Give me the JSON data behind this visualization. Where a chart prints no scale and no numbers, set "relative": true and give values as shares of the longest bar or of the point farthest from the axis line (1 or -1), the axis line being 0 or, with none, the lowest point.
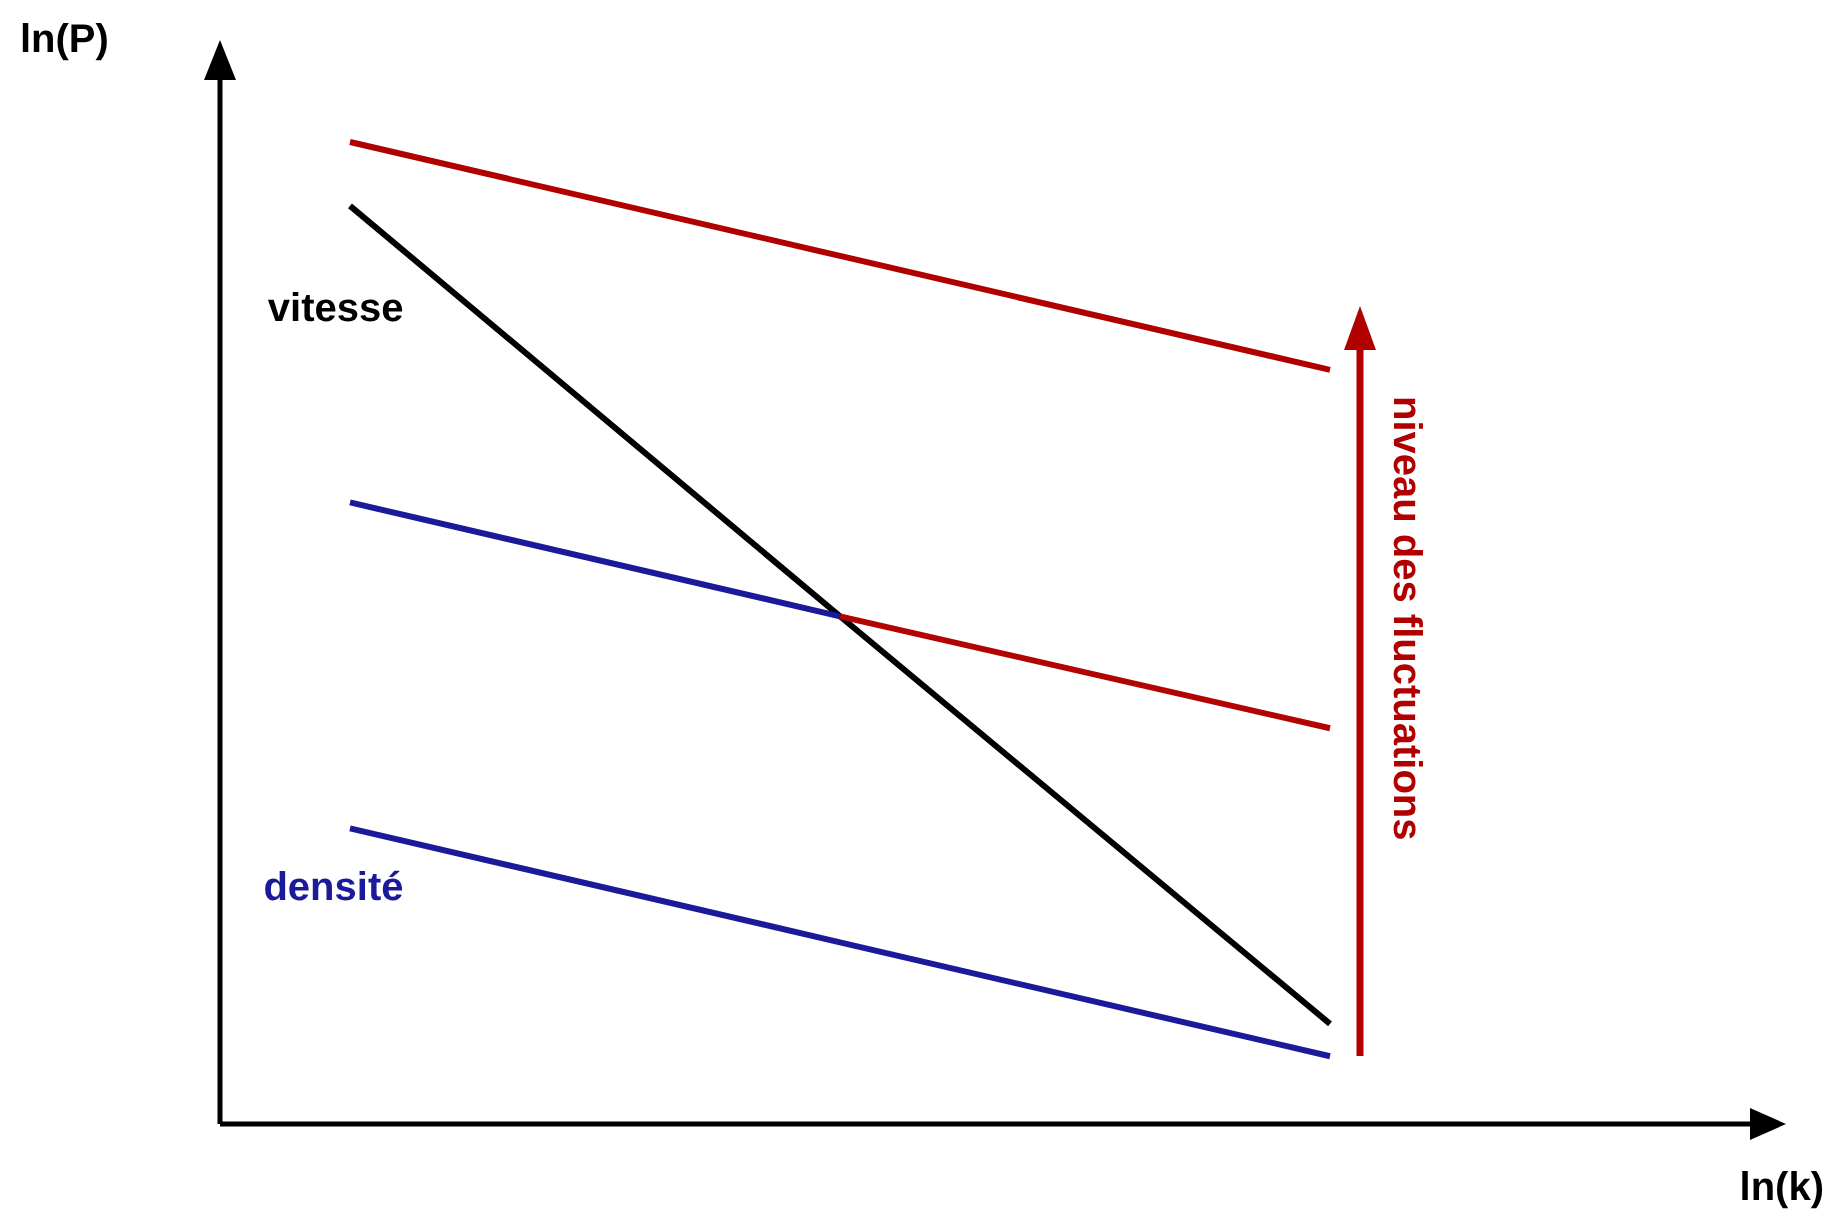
{
  "chart_data": {
    "type": "line",
    "relative": true,
    "xlabel": "ln(k)",
    "ylabel": "ln(P)",
    "categories": [
      null,
      null,
      null
    ],
    "series": [
      {
        "color": "#b00000",
        "values": [
          1,
          0.884,
          0.768
        ]
      },
      {
        "name": "vitesse",
        "color": "#000000",
        "values": [
          0.935,
          0.517,
          0.102
        ]
      },
      {
        "color": "#1a1a9a",
        "values": [
          0.633,
          0.517,
          null
        ]
      },
      {
        "color": "#b20402",
        "values": [
          null,
          0.517,
          0.403
        ]
      },
      {
        "name": "densité",
        "color": "#1a1a9a",
        "values": [
          0.301,
          0.185,
          0.069
        ]
      }
    ],
    "annotations": [
      "niveau des fluctuations"
    ],
    "legend": false,
    "marker": "none",
    "line_style": "solid"
  }
}
